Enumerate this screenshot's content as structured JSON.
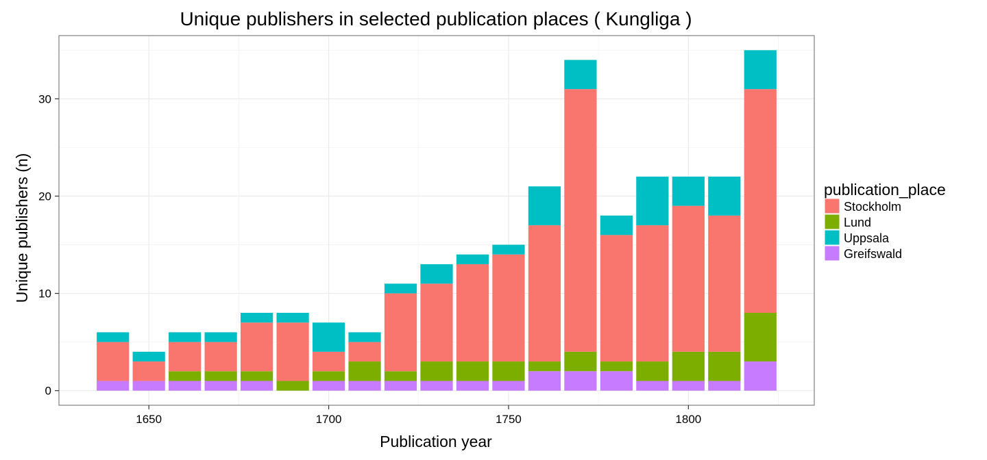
{
  "chart_data": {
    "type": "bar",
    "stacked": true,
    "title": "Unique publishers in selected publication places ( Kungliga )",
    "xlabel": "Publication year",
    "ylabel": "Unique publishers (n)",
    "x": [
      1640,
      1650,
      1660,
      1670,
      1680,
      1690,
      1700,
      1710,
      1720,
      1730,
      1740,
      1750,
      1760,
      1770,
      1780,
      1790,
      1800,
      1810,
      1820
    ],
    "xlim": [
      1625,
      1835
    ],
    "ylim": [
      -1.5,
      36.5
    ],
    "xticks": [
      1650,
      1700,
      1750,
      1800
    ],
    "yticks": [
      0,
      10,
      20,
      30
    ],
    "grid": true,
    "legend": {
      "title": "publication_place",
      "position": "right"
    },
    "series": [
      {
        "name": "Greifswald",
        "color": "#C77CFF",
        "values": [
          1,
          1,
          1,
          1,
          1,
          0,
          1,
          1,
          1,
          1,
          1,
          1,
          2,
          2,
          2,
          1,
          1,
          1,
          3
        ]
      },
      {
        "name": "Lund",
        "color": "#7CAE00",
        "values": [
          0,
          0,
          1,
          1,
          1,
          1,
          1,
          2,
          1,
          2,
          2,
          2,
          1,
          2,
          1,
          2,
          3,
          3,
          5
        ]
      },
      {
        "name": "Stockholm",
        "color": "#F8766D",
        "values": [
          4,
          2,
          3,
          3,
          5,
          6,
          2,
          2,
          8,
          8,
          10,
          11,
          14,
          27,
          13,
          14,
          15,
          14,
          23
        ]
      },
      {
        "name": "Uppsala",
        "color": "#00BFC4",
        "values": [
          1,
          1,
          1,
          1,
          1,
          1,
          3,
          1,
          1,
          2,
          1,
          1,
          4,
          3,
          2,
          5,
          3,
          4,
          4
        ]
      }
    ],
    "legend_order": [
      "Stockholm",
      "Lund",
      "Uppsala",
      "Greifswald"
    ]
  }
}
